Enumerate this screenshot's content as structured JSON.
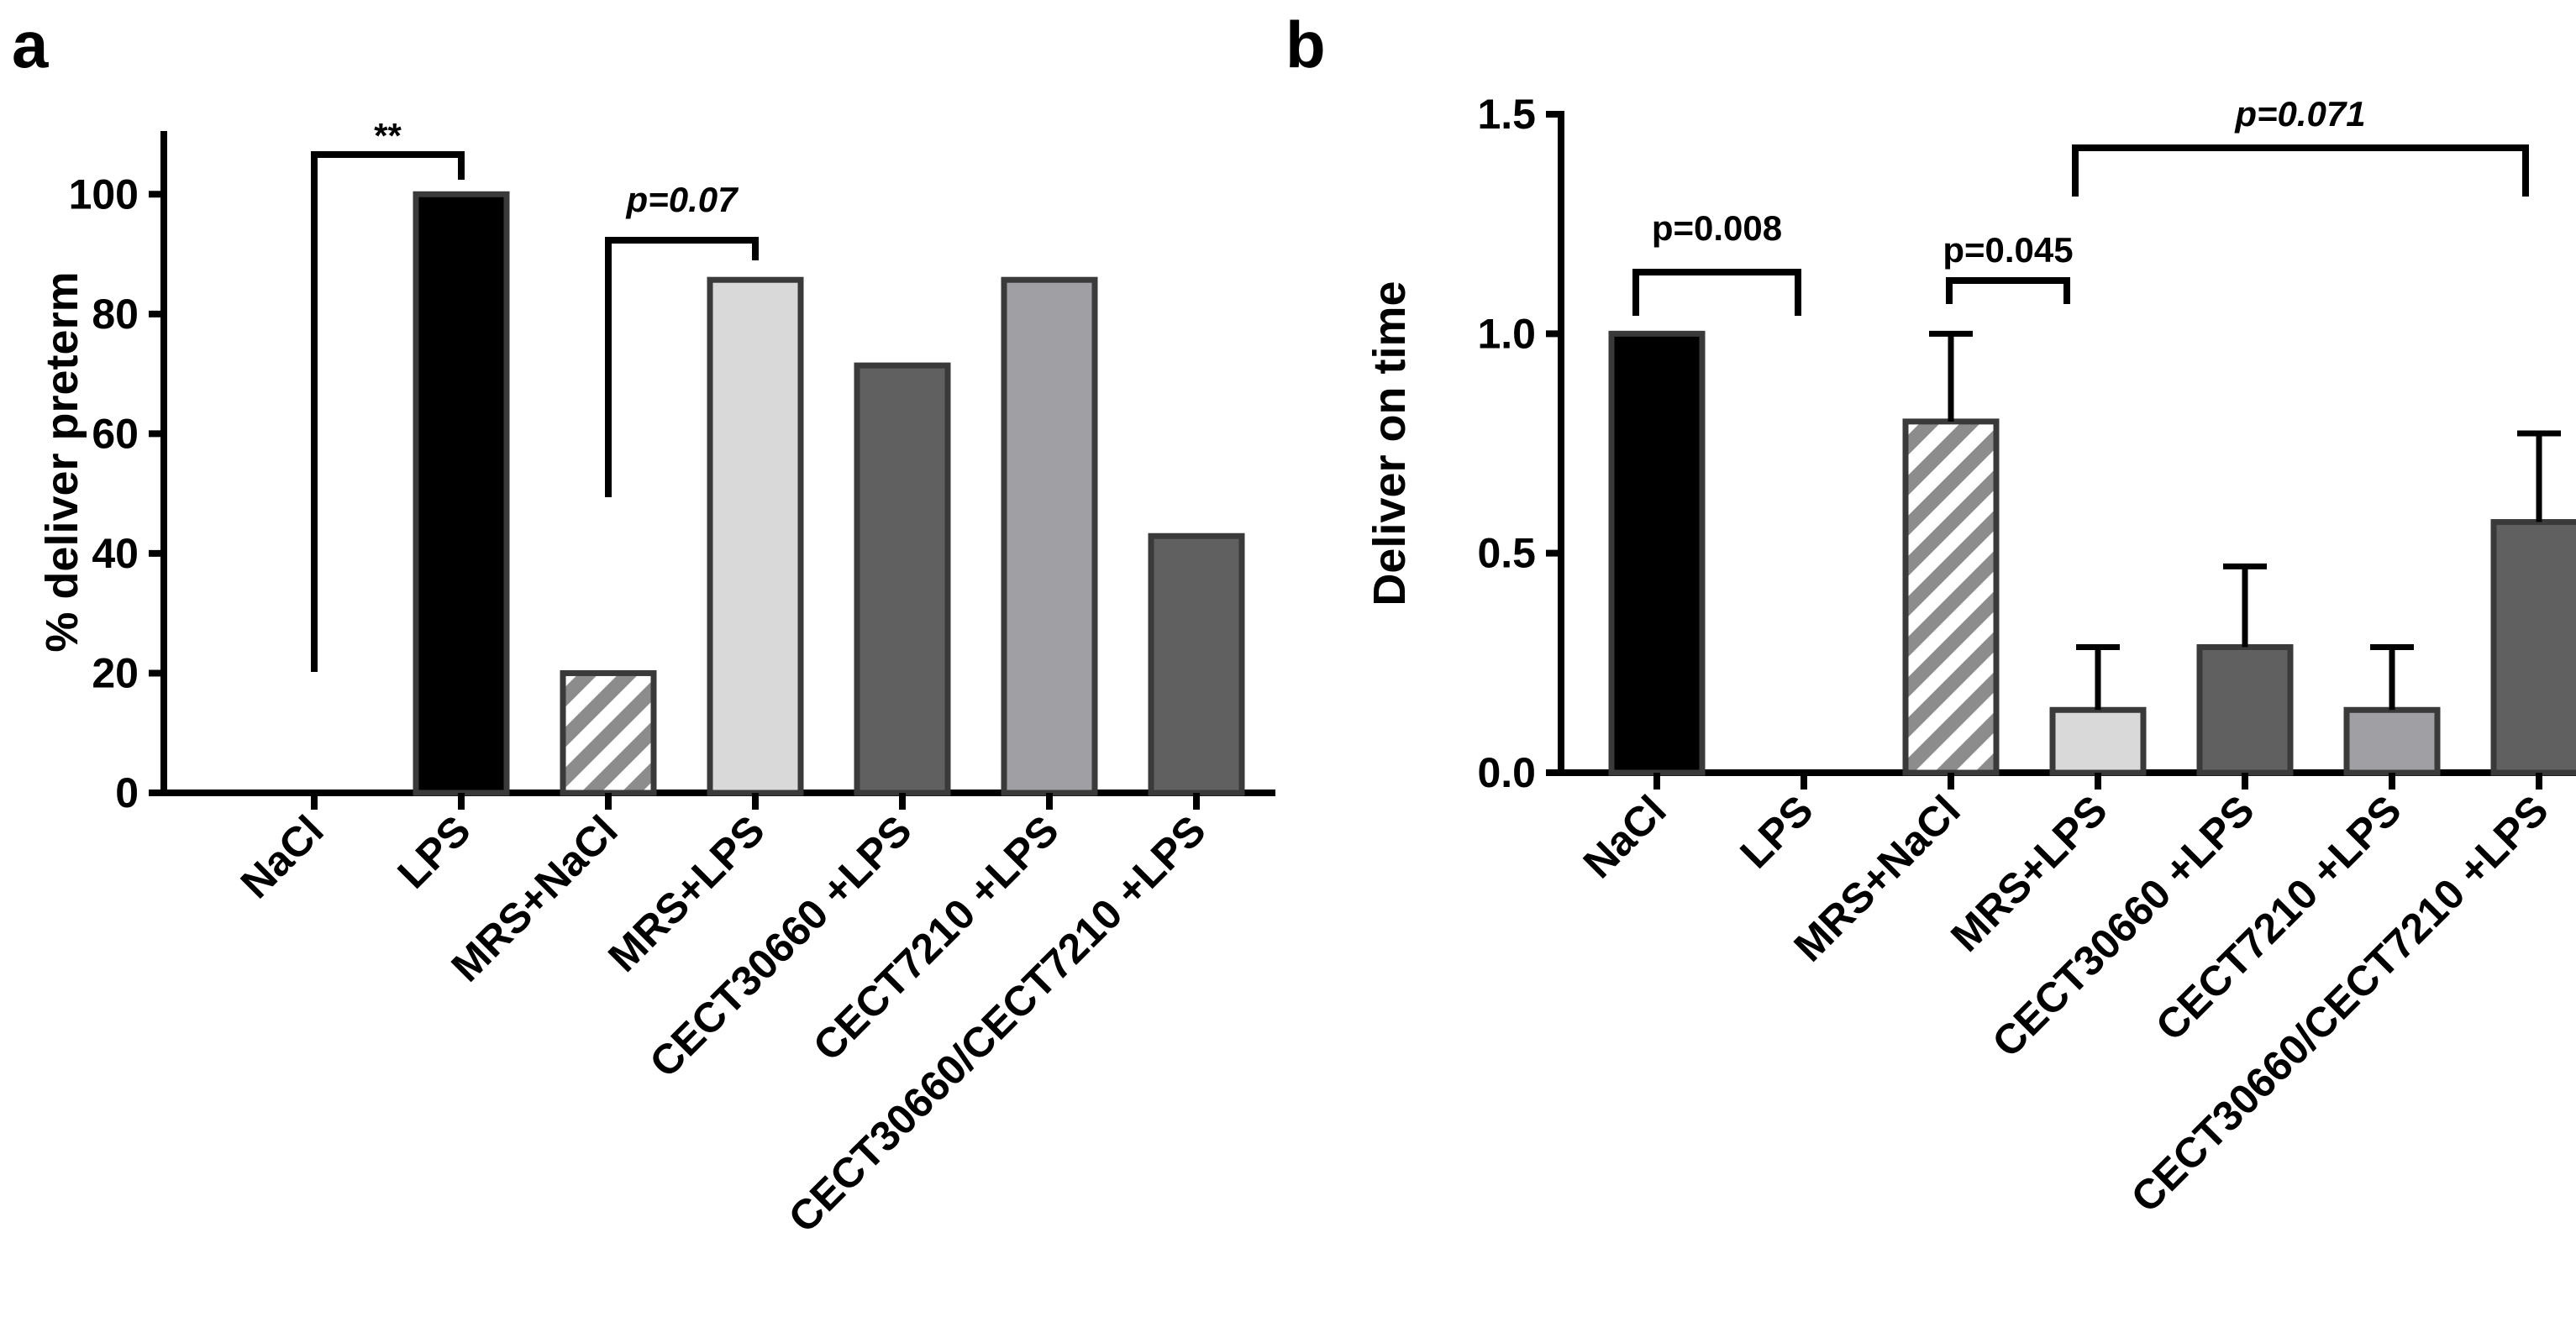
{
  "figure": {
    "panel_labels": [
      "a",
      "b"
    ]
  },
  "chart_data": [
    {
      "panel": "a",
      "type": "bar",
      "title": "",
      "xlabel": "",
      "ylabel": "% deliver preterm",
      "ylim": [
        0,
        110
      ],
      "yticks": [
        0,
        20,
        40,
        60,
        80,
        100
      ],
      "categories": [
        "NaCl",
        "LPS",
        "MRS+NaCl",
        "MRS+LPS",
        "CECT30660 +LPS",
        "CECT7210 +LPS",
        "CECT30660/CECT7210 +LPS"
      ],
      "values": [
        0,
        100,
        20,
        85.7,
        71.4,
        85.7,
        42.9
      ],
      "fills": [
        "#ffffff",
        "#000000",
        "hatch",
        "#d9d9d9",
        "#606060",
        "#a0a0a4",
        "#606060"
      ],
      "annotations": [
        {
          "from": "NaCl",
          "to": "LPS",
          "label": "**",
          "style": "normal"
        },
        {
          "from": "MRS+NaCl",
          "to": "MRS+LPS",
          "label": "p=0.07",
          "style": "italic"
        }
      ]
    },
    {
      "panel": "b",
      "type": "bar",
      "title": "",
      "xlabel": "",
      "ylabel": "Deliver on time",
      "ylim": [
        0,
        1.5
      ],
      "yticks": [
        "0.0",
        "0.5",
        "1.0",
        "1.5"
      ],
      "categories": [
        "NaCl",
        "LPS",
        "MRS+NaCl",
        "MRS+LPS",
        "CECT30660 +LPS",
        "CECT7210 +LPS",
        "CECT30660/CECT7210 +LPS"
      ],
      "values": [
        1.0,
        0,
        0.8,
        0.143,
        0.286,
        0.143,
        0.571
      ],
      "errors": [
        0,
        0,
        0.2,
        0.143,
        0.184,
        0.143,
        0.202
      ],
      "fills": [
        "#000000",
        "#ffffff",
        "hatch",
        "#d9d9d9",
        "#606060",
        "#a0a0a4",
        "#606060"
      ],
      "annotations": [
        {
          "from": "NaCl",
          "to": "LPS",
          "label": "p=0.008",
          "style": "normal"
        },
        {
          "from": "MRS+NaCl",
          "to": "MRS+LPS",
          "label": "p=0.045",
          "style": "normal"
        },
        {
          "from": "MRS+LPS",
          "to": "CECT30660/CECT7210 +LPS",
          "label": "p=0.071",
          "style": "italic"
        }
      ]
    }
  ]
}
